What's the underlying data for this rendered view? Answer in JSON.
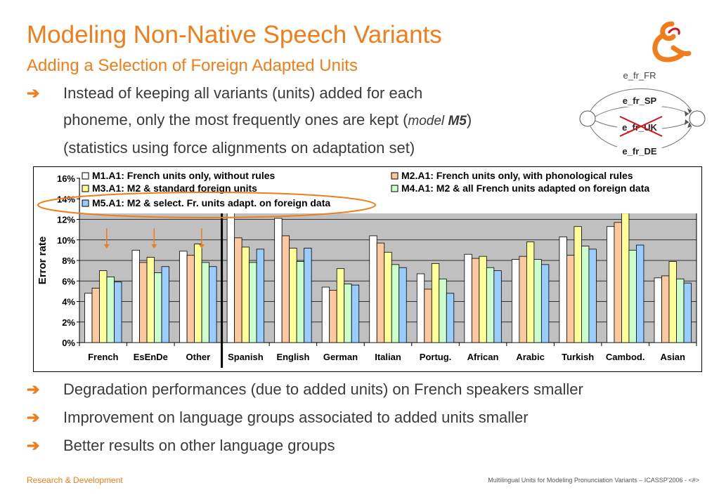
{
  "title": "Modeling Non-Native Speech Variants",
  "subtitle": "Adding a Selection of Foreign Adapted Units",
  "bullet1": {
    "line1": "Instead of keeping all variants (units) added for each",
    "line2_pre": "phoneme, only the most frequently ones are kept (",
    "line2_italic": "model ",
    "line2_bold": "M5",
    "line2_post": ")",
    "line3": "(statistics using force alignments on adaptation set)"
  },
  "diagram": {
    "labels": [
      "e_fr_FR",
      "e_fr_SP",
      "e_fr_UK",
      "e_fr_DE"
    ]
  },
  "chart_data": {
    "type": "bar",
    "categories": [
      "French",
      "EsEnDe",
      "Other",
      "Spanish",
      "English",
      "German",
      "Italian",
      "Portug.",
      "African",
      "Arabic",
      "Turkish",
      "Cambod.",
      "Asian"
    ],
    "series": [
      {
        "name": "M1.A1: French units only, without rules",
        "color": "#ffffff",
        "values": [
          4.8,
          9.0,
          8.9,
          12.7,
          12.1,
          5.4,
          10.4,
          6.7,
          8.6,
          8.1,
          10.3,
          11.3,
          6.3
        ]
      },
      {
        "name": "M2.A1: French units only, with phonological rules",
        "color": "#fbc8a0",
        "values": [
          5.3,
          7.8,
          8.5,
          10.2,
          10.4,
          5.1,
          9.7,
          5.2,
          8.2,
          8.4,
          8.5,
          11.7,
          6.5
        ]
      },
      {
        "name": "M3.A1: M2 & standard foreign units",
        "color": "#ffff99",
        "values": [
          7.0,
          8.3,
          9.6,
          9.3,
          9.2,
          7.2,
          8.8,
          7.7,
          8.4,
          9.8,
          11.3,
          12.6,
          7.9
        ]
      },
      {
        "name": "M4.A1: M2 & all French units adapted on foreign data",
        "color": "#ccffcc",
        "values": [
          6.4,
          6.8,
          7.8,
          7.8,
          7.9,
          5.7,
          7.6,
          6.2,
          7.3,
          8.1,
          9.4,
          9.0,
          6.2
        ]
      },
      {
        "name": "M5.A1: M2 & select. Fr. units adapt. on foreign data",
        "color": "#99ccff",
        "values": [
          5.9,
          7.4,
          7.4,
          9.1,
          9.2,
          5.6,
          7.3,
          4.8,
          7.0,
          7.6,
          9.1,
          9.5,
          5.8
        ]
      }
    ],
    "ylabel": "Error rate",
    "ylim": [
      0,
      16
    ],
    "yticks": [
      "0%",
      "2%",
      "4%",
      "6%",
      "8%",
      "10%",
      "12%",
      "14%",
      "16%"
    ],
    "grid": true,
    "legend": "top"
  },
  "bullets_bottom": [
    "Degradation performances (due to added units) on French speakers smaller",
    "Improvement on language groups associated to added units smaller",
    "Better results on other language groups"
  ],
  "footer": {
    "left": "Research & Development",
    "right": "Multilingual Units for Modeling Pronunciation Variants – ICASSP'2006 - <#>"
  },
  "arrow_glyph": "➔",
  "colors": {
    "accent": "#f07d1a",
    "plot_bg": "#c0c0c0"
  }
}
